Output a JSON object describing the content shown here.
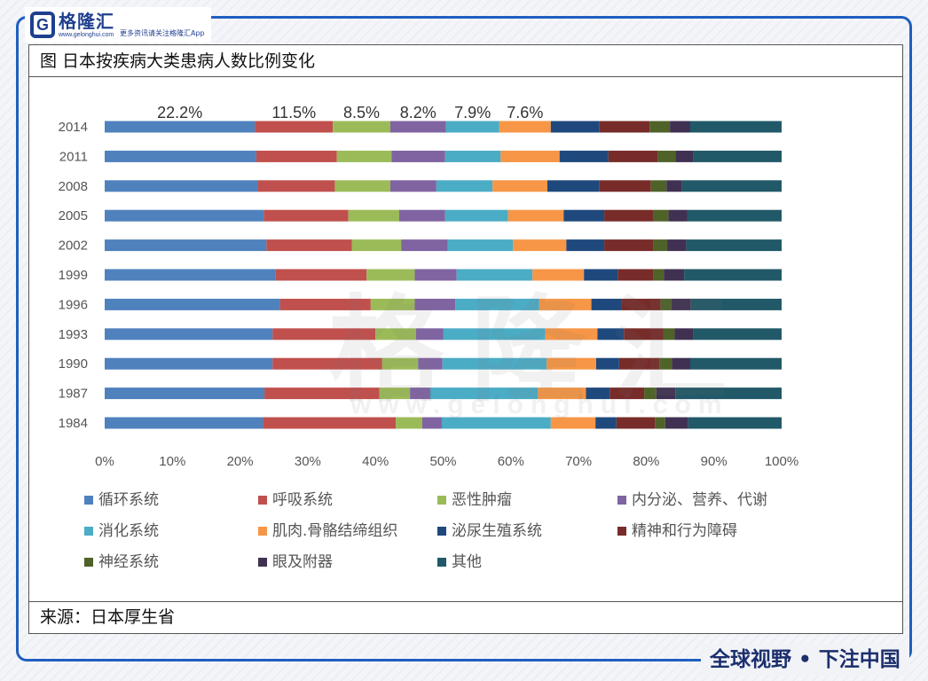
{
  "header": {
    "logo_mark": "G",
    "logo_name": "格隆汇",
    "logo_domain": "www.gelonghui.com",
    "slogan": "更多资讯请关注格隆汇App"
  },
  "figure": {
    "title": "图  日本按疾病大类患病人数比例变化",
    "source": "来源：日本厚生省"
  },
  "watermark": {
    "text": "格隆汇",
    "url": "www.gelonghui.com"
  },
  "footer": {
    "slogan": "全球视野 • 下注中国"
  },
  "colors": {
    "frame": "#1f5fbf",
    "series": [
      "#4f81bd",
      "#c0504d",
      "#9bbb59",
      "#8064a2",
      "#4bacc6",
      "#f79646",
      "#1f497d",
      "#772c2a",
      "#4f6228",
      "#403152",
      "#215968"
    ]
  },
  "chart_data": {
    "type": "bar",
    "orientation": "horizontal",
    "stacked": true,
    "percent": true,
    "categories": [
      "2014",
      "2011",
      "2008",
      "2005",
      "2002",
      "1999",
      "1996",
      "1993",
      "1990",
      "1987",
      "1984"
    ],
    "xlim": [
      0,
      100
    ],
    "xticks": [
      "0%",
      "10%",
      "20%",
      "30%",
      "40%",
      "50%",
      "60%",
      "70%",
      "80%",
      "90%",
      "100%"
    ],
    "grid": false,
    "legend_position": "bottom",
    "annotations": [
      {
        "category": "2014",
        "series": 0,
        "text": "22.2%"
      },
      {
        "category": "2014",
        "series": 1,
        "text": "11.5%"
      },
      {
        "category": "2014",
        "series": 2,
        "text": "8.5%"
      },
      {
        "category": "2014",
        "series": 3,
        "text": "8.2%"
      },
      {
        "category": "2014",
        "series": 4,
        "text": "7.9%"
      },
      {
        "category": "2014",
        "series": 5,
        "text": "7.6%"
      }
    ],
    "series": [
      {
        "name": "循环系统",
        "values": [
          22.2,
          22.4,
          22.6,
          23.5,
          23.9,
          25.2,
          25.9,
          24.8,
          24.8,
          23.6,
          23.4
        ]
      },
      {
        "name": "呼吸系统",
        "values": [
          11.5,
          11.9,
          11.4,
          12.5,
          12.6,
          13.5,
          13.4,
          15.2,
          16.2,
          17.0,
          19.6
        ]
      },
      {
        "name": "恶性肿瘤",
        "values": [
          8.5,
          8.1,
          8.2,
          7.5,
          7.3,
          7.1,
          6.5,
          6.0,
          5.3,
          4.5,
          3.9
        ]
      },
      {
        "name": "内分泌、营养、代谢",
        "values": [
          8.2,
          7.9,
          6.8,
          6.8,
          6.9,
          6.2,
          6.0,
          4.0,
          3.6,
          3.0,
          2.9
        ]
      },
      {
        "name": "消化系统",
        "values": [
          7.9,
          8.2,
          8.3,
          9.3,
          9.6,
          11.2,
          12.4,
          15.1,
          15.4,
          15.9,
          16.1
        ]
      },
      {
        "name": "肌肉.骨骼结缔组织",
        "values": [
          7.6,
          8.7,
          8.1,
          8.2,
          7.9,
          7.6,
          7.7,
          7.7,
          7.3,
          7.1,
          6.6
        ]
      },
      {
        "name": "泌尿生殖系统",
        "values": [
          7.2,
          7.2,
          7.7,
          6.0,
          5.6,
          5.0,
          4.5,
          3.9,
          3.4,
          3.5,
          3.1
        ]
      },
      {
        "name": "精神和行为障碍",
        "values": [
          7.4,
          7.3,
          7.6,
          7.2,
          7.3,
          5.2,
          5.7,
          5.8,
          6.0,
          5.1,
          5.7
        ]
      },
      {
        "name": "神经系统",
        "values": [
          3.0,
          2.6,
          2.3,
          2.3,
          2.0,
          1.6,
          1.6,
          1.7,
          1.8,
          1.8,
          1.5
        ]
      },
      {
        "name": "眼及附器",
        "values": [
          3.0,
          2.6,
          2.3,
          2.8,
          2.8,
          3.0,
          2.9,
          2.7,
          2.7,
          2.8,
          3.4
        ]
      },
      {
        "name": "其他",
        "values": [
          13.5,
          13.1,
          14.7,
          13.9,
          14.1,
          14.4,
          13.4,
          13.1,
          13.5,
          15.7,
          13.8
        ]
      }
    ]
  }
}
